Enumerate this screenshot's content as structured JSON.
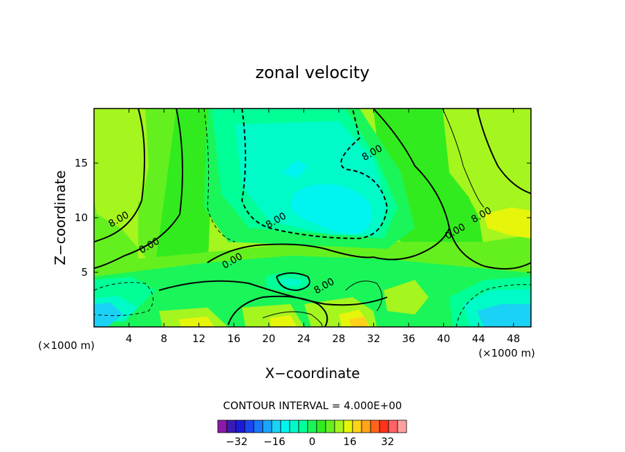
{
  "chart_data": {
    "type": "heatmap",
    "title": "zonal velocity",
    "xlabel": "X−coordinate",
    "ylabel": "Z−coordinate",
    "x_unit": "(×1000 m)",
    "x_unit_right": "(×1000 m)",
    "xlim": [
      0,
      50
    ],
    "ylim": [
      0,
      20
    ],
    "x_ticks": [
      "4",
      "8",
      "12",
      "16",
      "20",
      "24",
      "28",
      "32",
      "36",
      "40",
      "44",
      "48"
    ],
    "y_ticks": [
      "5",
      "10",
      "15"
    ],
    "contour_interval_text": "CONTOUR INTERVAL = 4.000E+00",
    "contour_labels": [
      {
        "text": "8.00",
        "x": 3.0,
        "y": 9.6
      },
      {
        "text": "0.00",
        "x": 6.5,
        "y": 7.2
      },
      {
        "text": "0.00",
        "x": 16.0,
        "y": 5.8
      },
      {
        "text": "8.00",
        "x": 21.0,
        "y": 9.5
      },
      {
        "text": "8.00",
        "x": 26.5,
        "y": 3.5
      },
      {
        "text": "8.00",
        "x": 32.0,
        "y": 15.7
      },
      {
        "text": "0.00",
        "x": 41.5,
        "y": 8.5
      },
      {
        "text": "8.00",
        "x": 44.5,
        "y": 10.0
      }
    ],
    "colorbar": {
      "tick_labels": [
        "−32",
        "−16",
        "0",
        "16",
        "32"
      ],
      "tick_values": [
        -32,
        -16,
        0,
        16,
        32
      ],
      "levels": [
        -40,
        -36,
        -32,
        -28,
        -24,
        -20,
        -16,
        -12,
        -8,
        -4,
        0,
        4,
        8,
        12,
        16,
        20,
        24,
        28,
        32,
        36,
        40
      ],
      "colors": [
        "#8c1aa6",
        "#3d1ab4",
        "#1a1ad9",
        "#1a46f0",
        "#1a78ff",
        "#1aa5ff",
        "#1ad2f5",
        "#00f5f0",
        "#00fac8",
        "#00ff96",
        "#1af55a",
        "#32eb1e",
        "#64f01e",
        "#a5f51e",
        "#e6f50a",
        "#ffd21a",
        "#ffa51a",
        "#ff641a",
        "#ff321a",
        "#ff6464",
        "#ffa0a0"
      ]
    },
    "grid": false
  }
}
